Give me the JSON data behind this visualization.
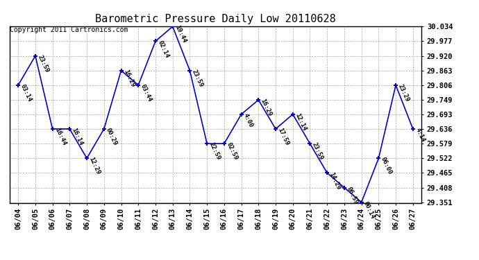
{
  "title": "Barometric Pressure Daily Low 20110628",
  "copyright": "Copyright 2011 Cartronics.com",
  "dates": [
    "06/04",
    "06/05",
    "06/06",
    "06/07",
    "06/08",
    "06/09",
    "06/10",
    "06/11",
    "06/12",
    "06/13",
    "06/14",
    "06/15",
    "06/16",
    "06/17",
    "06/18",
    "06/19",
    "06/20",
    "06/21",
    "06/22",
    "06/23",
    "06/24",
    "06/25",
    "06/26",
    "06/27"
  ],
  "values": [
    29.806,
    29.92,
    29.636,
    29.636,
    29.522,
    29.636,
    29.863,
    29.806,
    29.977,
    30.034,
    29.863,
    29.579,
    29.579,
    29.693,
    29.749,
    29.636,
    29.693,
    29.579,
    29.465,
    29.408,
    29.351,
    29.522,
    29.806,
    29.636
  ],
  "annotations": [
    "03:14",
    "23:59",
    "16:44",
    "16:14",
    "12:29",
    "00:29",
    "16:29",
    "03:44",
    "02:14",
    "19:44",
    "23:59",
    "22:59",
    "02:59",
    "4:00",
    "16:29",
    "17:59",
    "12:14",
    "23:59",
    "14:29",
    "06:59",
    "00:14",
    "06:00",
    "23:29",
    "4:14"
  ],
  "ylim_min": 29.351,
  "ylim_max": 30.034,
  "yticks": [
    29.351,
    29.408,
    29.465,
    29.522,
    29.579,
    29.636,
    29.693,
    29.749,
    29.806,
    29.863,
    29.92,
    29.977,
    30.034
  ],
  "line_color": "#0000cc",
  "marker_color": "#0000cc",
  "bg_color": "#ffffff",
  "grid_color": "#aaaaaa",
  "title_fontsize": 11,
  "annotation_fontsize": 6.5,
  "tick_fontsize": 7.5,
  "copyright_fontsize": 7
}
